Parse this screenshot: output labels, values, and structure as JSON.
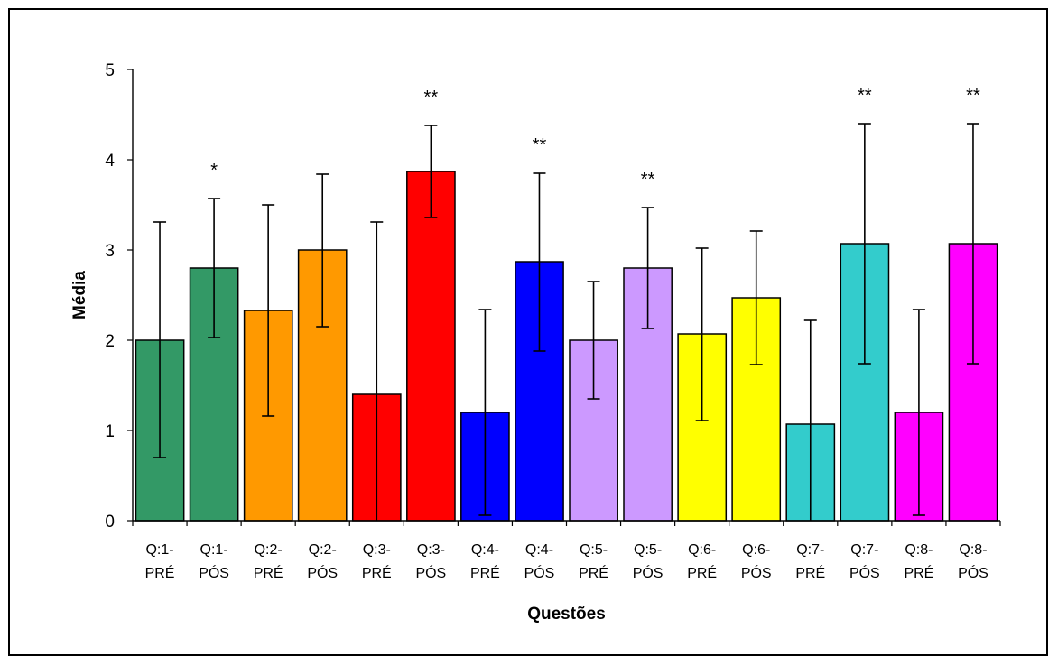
{
  "chart_data": {
    "type": "bar",
    "title": "",
    "xlabel": "Questões",
    "ylabel": "Média",
    "ylim": [
      0,
      5
    ],
    "yticks": [
      "0",
      "1",
      "2",
      "3",
      "4",
      "5"
    ],
    "grid": false,
    "legend": "none",
    "categories": [
      [
        "Q:1-",
        "PRÉ"
      ],
      [
        "Q:1-",
        "PÓS"
      ],
      [
        "Q:2-",
        "PRÉ"
      ],
      [
        "Q:2-",
        "PÓS"
      ],
      [
        "Q:3-",
        "PRÉ"
      ],
      [
        "Q:3-",
        "PÓS"
      ],
      [
        "Q:4-",
        "PRÉ"
      ],
      [
        "Q:4-",
        "PÓS"
      ],
      [
        "Q:5-",
        "PRÉ"
      ],
      [
        "Q:5-",
        "PÓS"
      ],
      [
        "Q:6-",
        "PRÉ"
      ],
      [
        "Q:6-",
        "PÓS"
      ],
      [
        "Q:7-",
        "PRÉ"
      ],
      [
        "Q:7-",
        "PÓS"
      ],
      [
        "Q:8-",
        "PRÉ"
      ],
      [
        "Q:8-",
        "PÓS"
      ]
    ],
    "values": [
      2.0,
      2.8,
      2.33,
      3.0,
      1.4,
      3.87,
      1.2,
      2.87,
      2.0,
      2.8,
      2.07,
      2.47,
      1.07,
      3.07,
      1.2,
      3.07
    ],
    "error_low": [
      0.7,
      2.03,
      1.16,
      2.15,
      0.0,
      3.36,
      0.06,
      1.88,
      1.35,
      2.13,
      1.11,
      1.73,
      0.0,
      1.74,
      0.06,
      1.74
    ],
    "error_high": [
      3.31,
      3.57,
      3.5,
      3.84,
      3.31,
      4.38,
      2.34,
      3.85,
      2.65,
      3.47,
      3.02,
      3.21,
      2.22,
      4.4,
      2.34,
      4.4
    ],
    "significance": [
      "",
      "*",
      "",
      "",
      "",
      "**",
      "",
      "**",
      "",
      "**",
      "",
      "",
      "",
      "**",
      "",
      "**"
    ],
    "colors": [
      "#339966",
      "#339966",
      "#ff9900",
      "#ff9900",
      "#ff0000",
      "#ff0000",
      "#0000ff",
      "#0000ff",
      "#cc99ff",
      "#cc99ff",
      "#ffff00",
      "#ffff00",
      "#33cccc",
      "#33cccc",
      "#ff00ff",
      "#ff00ff"
    ]
  }
}
